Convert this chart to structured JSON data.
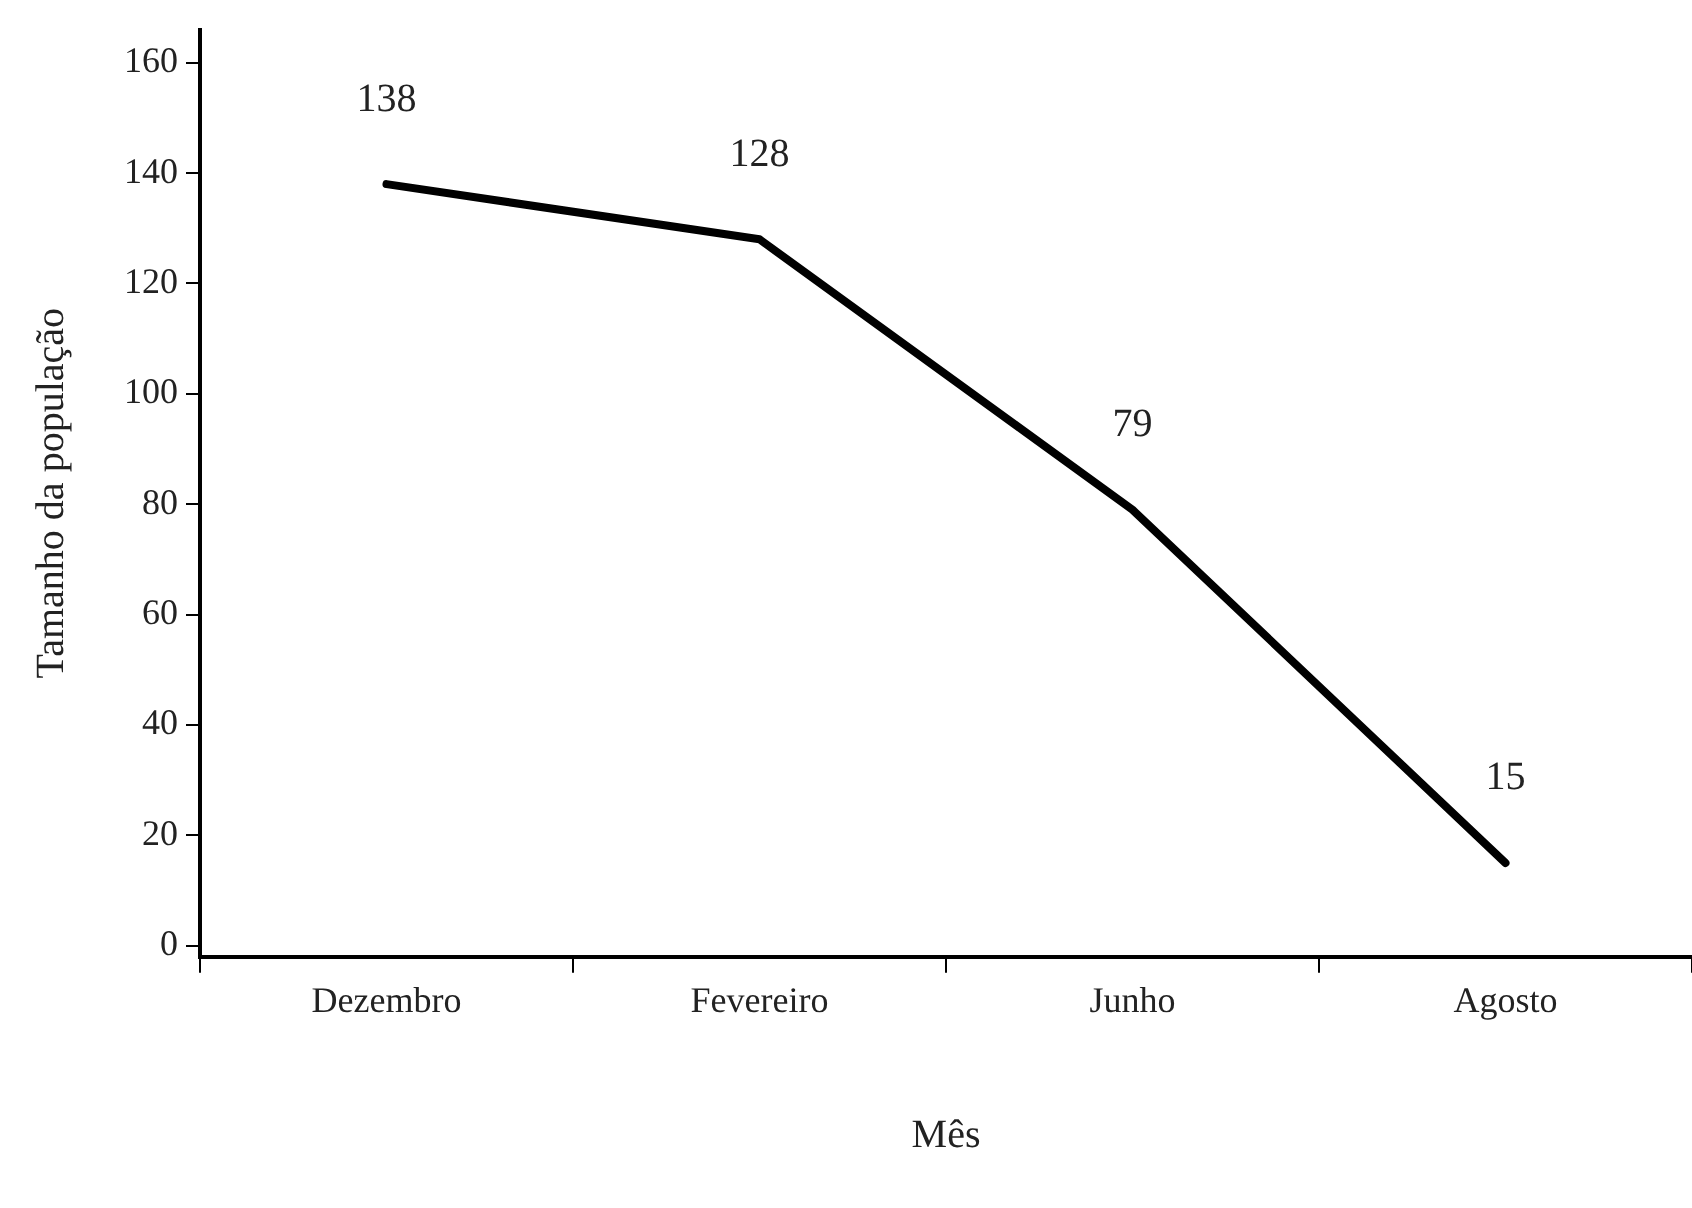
{
  "chart_data": {
    "type": "line",
    "xlabel": "Mês",
    "ylabel": "Tamanho da população",
    "categories": [
      "Dezembro",
      "Fevereiro",
      "Junho",
      "Agosto"
    ],
    "series": [
      {
        "color": "#000000",
        "values": [
          138,
          128,
          79,
          15
        ]
      }
    ],
    "data_labels": true,
    "ylim": [
      -2,
      166
    ],
    "yticks": [
      0,
      20,
      40,
      60,
      80,
      100,
      120,
      140,
      160
    ],
    "grid": false,
    "legend": false,
    "marker": "none",
    "line_style": "solid"
  }
}
